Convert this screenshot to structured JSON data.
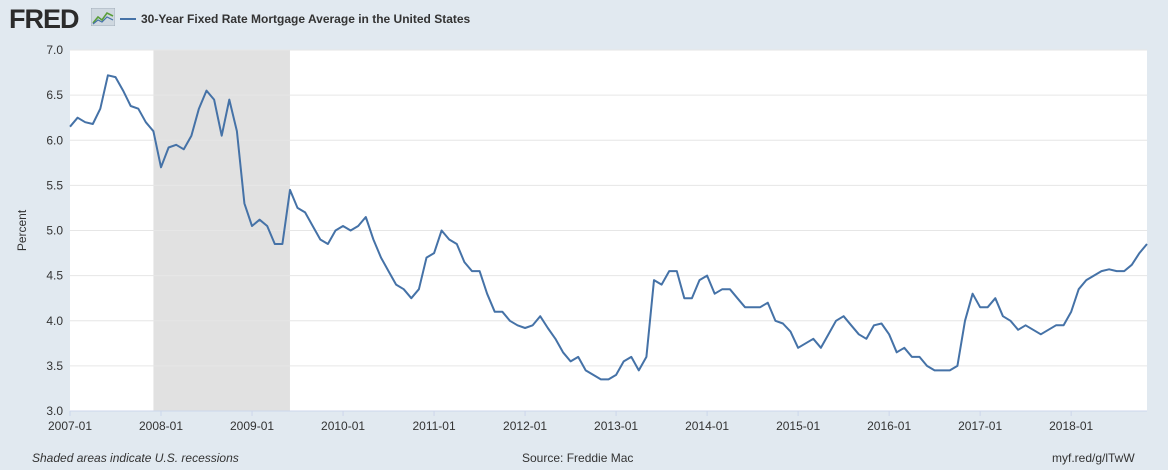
{
  "header": {
    "logo": "FRED",
    "logo_icon": "fred-graph-icon",
    "legend_label": "30-Year Fixed Rate Mortgage Average in the United States"
  },
  "footer": {
    "recession_note": "Shaded areas indicate U.S. recessions",
    "source": "Source: Freddie Mac",
    "short_url": "myf.red/g/lTwW"
  },
  "colors": {
    "series": "#4572a7",
    "recession": "#e1e1e1",
    "page_bg": "#e1e9f0"
  },
  "chart_data": {
    "type": "line",
    "title": "30-Year Fixed Rate Mortgage Average in the United States",
    "ylabel": "Percent",
    "xlabel": "",
    "ylim": [
      3.0,
      7.0
    ],
    "xlim": [
      "2007-01",
      "2018-11"
    ],
    "yticks": [
      "3.0",
      "3.5",
      "4.0",
      "4.5",
      "5.0",
      "5.5",
      "6.0",
      "6.5",
      "7.0"
    ],
    "xticks": [
      "2007-01",
      "2008-01",
      "2009-01",
      "2010-01",
      "2011-01",
      "2012-01",
      "2013-01",
      "2014-01",
      "2015-01",
      "2016-01",
      "2017-01",
      "2018-01"
    ],
    "grid": true,
    "recessions": [
      {
        "start": "2007-12",
        "end": "2009-06"
      }
    ],
    "series": [
      {
        "name": "30-Year Fixed Rate Mortgage Average in the United States",
        "x": [
          "2007-01",
          "2007-02",
          "2007-03",
          "2007-04",
          "2007-05",
          "2007-06",
          "2007-07",
          "2007-08",
          "2007-09",
          "2007-10",
          "2007-11",
          "2007-12",
          "2008-01",
          "2008-02",
          "2008-03",
          "2008-04",
          "2008-05",
          "2008-06",
          "2008-07",
          "2008-08",
          "2008-09",
          "2008-10",
          "2008-11",
          "2008-12",
          "2009-01",
          "2009-02",
          "2009-03",
          "2009-04",
          "2009-05",
          "2009-06",
          "2009-07",
          "2009-08",
          "2009-09",
          "2009-10",
          "2009-11",
          "2009-12",
          "2010-01",
          "2010-02",
          "2010-03",
          "2010-04",
          "2010-05",
          "2010-06",
          "2010-07",
          "2010-08",
          "2010-09",
          "2010-10",
          "2010-11",
          "2010-12",
          "2011-01",
          "2011-02",
          "2011-03",
          "2011-04",
          "2011-05",
          "2011-06",
          "2011-07",
          "2011-08",
          "2011-09",
          "2011-10",
          "2011-11",
          "2011-12",
          "2012-01",
          "2012-02",
          "2012-03",
          "2012-04",
          "2012-05",
          "2012-06",
          "2012-07",
          "2012-08",
          "2012-09",
          "2012-10",
          "2012-11",
          "2012-12",
          "2013-01",
          "2013-02",
          "2013-03",
          "2013-04",
          "2013-05",
          "2013-06",
          "2013-07",
          "2013-08",
          "2013-09",
          "2013-10",
          "2013-11",
          "2013-12",
          "2014-01",
          "2014-02",
          "2014-03",
          "2014-04",
          "2014-05",
          "2014-06",
          "2014-07",
          "2014-08",
          "2014-09",
          "2014-10",
          "2014-11",
          "2014-12",
          "2015-01",
          "2015-02",
          "2015-03",
          "2015-04",
          "2015-05",
          "2015-06",
          "2015-07",
          "2015-08",
          "2015-09",
          "2015-10",
          "2015-11",
          "2015-12",
          "2016-01",
          "2016-02",
          "2016-03",
          "2016-04",
          "2016-05",
          "2016-06",
          "2016-07",
          "2016-08",
          "2016-09",
          "2016-10",
          "2016-11",
          "2016-12",
          "2017-01",
          "2017-02",
          "2017-03",
          "2017-04",
          "2017-05",
          "2017-06",
          "2017-07",
          "2017-08",
          "2017-09",
          "2017-10",
          "2017-11",
          "2017-12",
          "2018-01",
          "2018-02",
          "2018-03",
          "2018-04",
          "2018-05",
          "2018-06",
          "2018-07",
          "2018-08",
          "2018-09",
          "2018-10",
          "2018-11"
        ],
        "values": [
          6.15,
          6.25,
          6.2,
          6.18,
          6.35,
          6.72,
          6.7,
          6.55,
          6.38,
          6.35,
          6.2,
          6.1,
          5.7,
          5.92,
          5.95,
          5.9,
          6.05,
          6.35,
          6.55,
          6.45,
          6.05,
          6.45,
          6.1,
          5.3,
          5.05,
          5.12,
          5.05,
          4.85,
          4.85,
          5.45,
          5.25,
          5.2,
          5.05,
          4.9,
          4.85,
          5.0,
          5.05,
          5.0,
          5.05,
          5.15,
          4.9,
          4.7,
          4.55,
          4.4,
          4.35,
          4.25,
          4.35,
          4.7,
          4.75,
          5.0,
          4.9,
          4.85,
          4.65,
          4.55,
          4.55,
          4.3,
          4.1,
          4.1,
          4.0,
          3.95,
          3.92,
          3.95,
          4.05,
          3.92,
          3.8,
          3.65,
          3.55,
          3.6,
          3.45,
          3.4,
          3.35,
          3.35,
          3.4,
          3.55,
          3.6,
          3.45,
          3.6,
          4.45,
          4.4,
          4.55,
          4.55,
          4.25,
          4.25,
          4.45,
          4.5,
          4.3,
          4.35,
          4.35,
          4.25,
          4.15,
          4.15,
          4.15,
          4.2,
          4.0,
          3.97,
          3.88,
          3.7,
          3.75,
          3.8,
          3.7,
          3.85,
          4.0,
          4.05,
          3.95,
          3.85,
          3.8,
          3.95,
          3.97,
          3.85,
          3.65,
          3.7,
          3.6,
          3.6,
          3.5,
          3.45,
          3.45,
          3.45,
          3.5,
          4.0,
          4.3,
          4.15,
          4.15,
          4.25,
          4.05,
          4.0,
          3.9,
          3.95,
          3.9,
          3.85,
          3.9,
          3.95,
          3.95,
          4.1,
          4.35,
          4.45,
          4.5,
          4.55,
          4.57,
          4.55,
          4.55,
          4.62,
          4.75,
          4.85
        ]
      }
    ]
  }
}
